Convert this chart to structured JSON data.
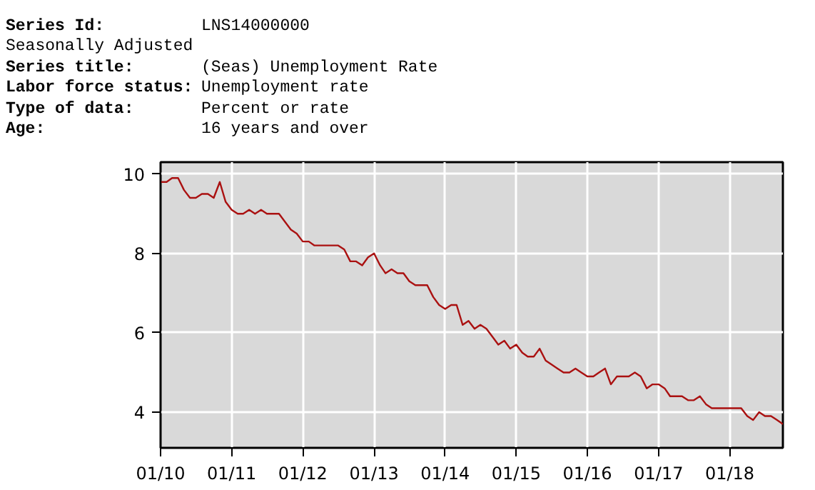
{
  "chart_data": {
    "type": "line",
    "annotations": [
      "Series Id:\tLNS14000000",
      "Seasonally Adjusted",
      "Series title:\t(Seas) Unemployment Rate",
      "Labor force status:\tUnemployment rate",
      "Type of data:\tPercent or rate",
      "Age:\t16 years and over"
    ],
    "x": [
      "2010-01",
      "2010-02",
      "2010-03",
      "2010-04",
      "2010-05",
      "2010-06",
      "2010-07",
      "2010-08",
      "2010-09",
      "2010-10",
      "2010-11",
      "2010-12",
      "2011-01",
      "2011-02",
      "2011-03",
      "2011-04",
      "2011-05",
      "2011-06",
      "2011-07",
      "2011-08",
      "2011-09",
      "2011-10",
      "2011-11",
      "2011-12",
      "2012-01",
      "2012-02",
      "2012-03",
      "2012-04",
      "2012-05",
      "2012-06",
      "2012-07",
      "2012-08",
      "2012-09",
      "2012-10",
      "2012-11",
      "2012-12",
      "2013-01",
      "2013-02",
      "2013-03",
      "2013-04",
      "2013-05",
      "2013-06",
      "2013-07",
      "2013-08",
      "2013-09",
      "2013-10",
      "2013-11",
      "2013-12",
      "2014-01",
      "2014-02",
      "2014-03",
      "2014-04",
      "2014-05",
      "2014-06",
      "2014-07",
      "2014-08",
      "2014-09",
      "2014-10",
      "2014-11",
      "2014-12",
      "2015-01",
      "2015-02",
      "2015-03",
      "2015-04",
      "2015-05",
      "2015-06",
      "2015-07",
      "2015-08",
      "2015-09",
      "2015-10",
      "2015-11",
      "2015-12",
      "2016-01",
      "2016-02",
      "2016-03",
      "2016-04",
      "2016-05",
      "2016-06",
      "2016-07",
      "2016-08",
      "2016-09",
      "2016-10",
      "2016-11",
      "2016-12",
      "2017-01",
      "2017-02",
      "2017-03",
      "2017-04",
      "2017-05",
      "2017-06",
      "2017-07",
      "2017-08",
      "2017-09",
      "2017-10",
      "2017-11",
      "2017-12",
      "2018-01",
      "2018-02",
      "2018-03",
      "2018-04",
      "2018-05",
      "2018-06",
      "2018-07",
      "2018-08",
      "2018-09",
      "2018-10"
    ],
    "series": [
      {
        "color": "#aa1111",
        "values": [
          9.8,
          9.8,
          9.9,
          9.9,
          9.6,
          9.4,
          9.4,
          9.5,
          9.5,
          9.4,
          9.8,
          9.3,
          9.1,
          9.0,
          9.0,
          9.1,
          9.0,
          9.1,
          9.0,
          9.0,
          9.0,
          8.8,
          8.6,
          8.5,
          8.3,
          8.3,
          8.2,
          8.2,
          8.2,
          8.2,
          8.2,
          8.1,
          7.8,
          7.8,
          7.7,
          7.9,
          8.0,
          7.7,
          7.5,
          7.6,
          7.5,
          7.5,
          7.3,
          7.2,
          7.2,
          7.2,
          6.9,
          6.7,
          6.6,
          6.7,
          6.7,
          6.2,
          6.3,
          6.1,
          6.2,
          6.1,
          5.9,
          5.7,
          5.8,
          5.6,
          5.7,
          5.5,
          5.4,
          5.4,
          5.6,
          5.3,
          5.2,
          5.1,
          5.0,
          5.0,
          5.1,
          5.0,
          4.9,
          4.9,
          5.0,
          5.1,
          4.7,
          4.9,
          4.9,
          4.9,
          5.0,
          4.9,
          4.6,
          4.7,
          4.7,
          4.6,
          4.4,
          4.4,
          4.4,
          4.3,
          4.3,
          4.4,
          4.2,
          4.1,
          4.1,
          4.1,
          4.1,
          4.1,
          4.1,
          3.9,
          3.8,
          4.0,
          3.9,
          3.9,
          3.8,
          3.7
        ]
      }
    ],
    "xlim": [
      "2010-01",
      "2018-10"
    ],
    "xticks": [
      {
        "value": "2010-01",
        "label": "01/10"
      },
      {
        "value": "2011-01",
        "label": "01/11"
      },
      {
        "value": "2012-01",
        "label": "01/12"
      },
      {
        "value": "2013-01",
        "label": "01/13"
      },
      {
        "value": "2014-01",
        "label": "01/14"
      },
      {
        "value": "2015-01",
        "label": "01/15"
      },
      {
        "value": "2016-01",
        "label": "01/16"
      },
      {
        "value": "2017-01",
        "label": "01/17"
      },
      {
        "value": "2018-01",
        "label": "01/18"
      }
    ],
    "ylim": [
      3.1,
      10.3
    ],
    "yticks": [
      4,
      6,
      8,
      10
    ],
    "grid": true,
    "line_style": "solid",
    "marker": "none"
  }
}
